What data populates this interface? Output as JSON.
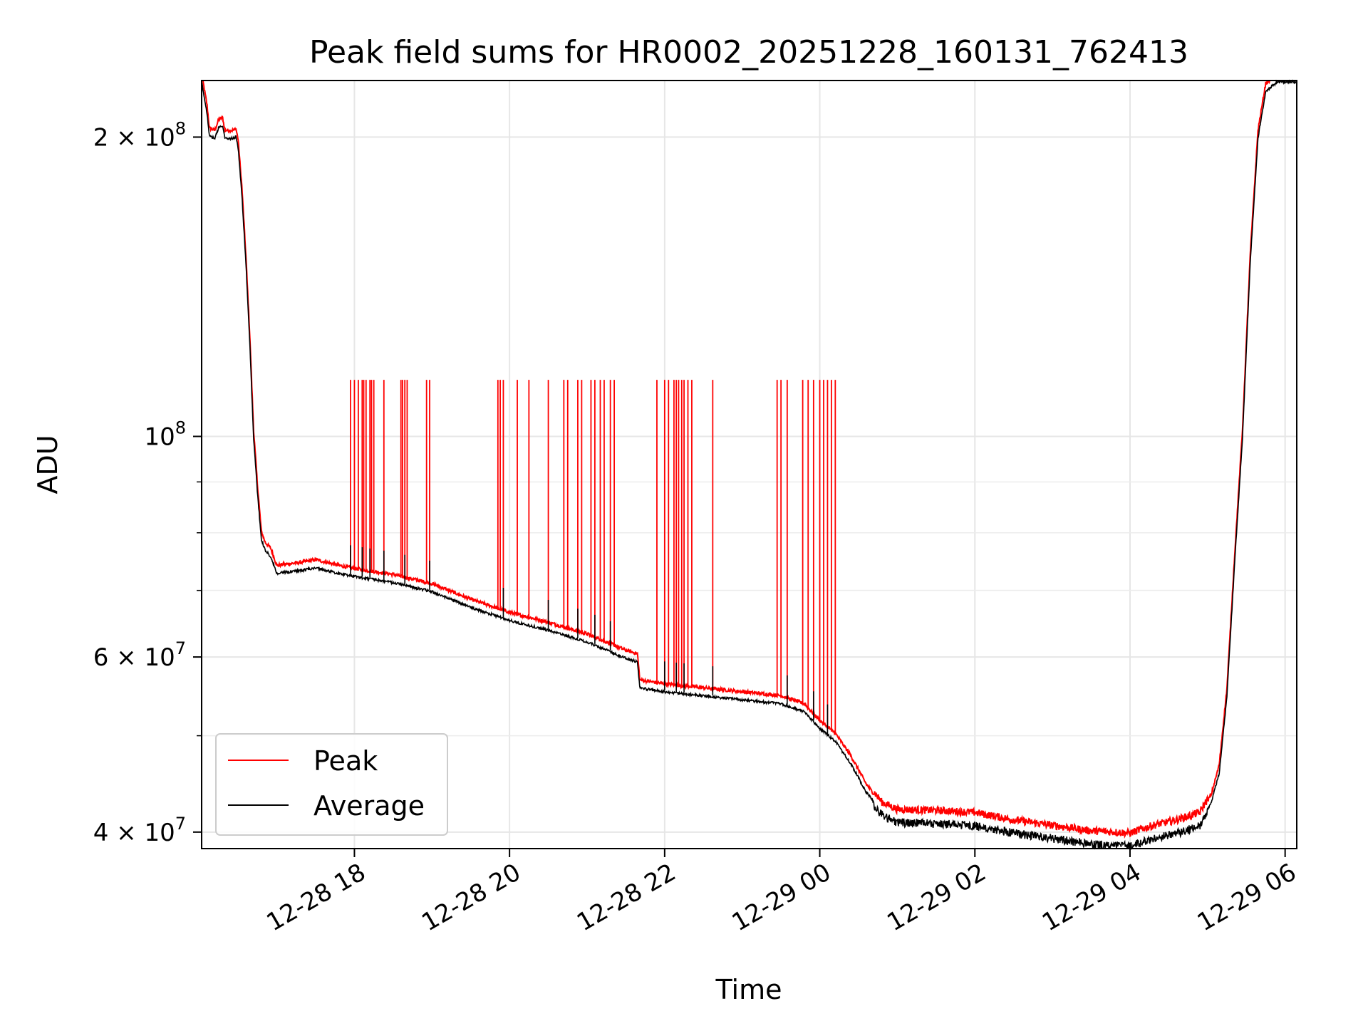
{
  "chart_data": {
    "type": "line",
    "title": "Peak field sums for HR0002_20251228_160131_762413",
    "xlabel": "Time",
    "ylabel": "ADU",
    "yscale": "log",
    "grid": true,
    "legend_position": "lower-left",
    "x_unit": "hours since 12-28 16:00",
    "xlim": [
      0.03,
      14.15
    ],
    "ylim": [
      38500000,
      228000000
    ],
    "x_ticks": [
      {
        "value": 2,
        "label": "12-28 18"
      },
      {
        "value": 4,
        "label": "12-28 20"
      },
      {
        "value": 6,
        "label": "12-28 22"
      },
      {
        "value": 8,
        "label": "12-29 00"
      },
      {
        "value": 10,
        "label": "12-29 02"
      },
      {
        "value": 12,
        "label": "12-29 04"
      },
      {
        "value": 14,
        "label": "12-29 06"
      }
    ],
    "y_ticks": [
      {
        "value": 40000000,
        "mantissa": "4",
        "exp": "7"
      },
      {
        "value": 60000000,
        "mantissa": "6",
        "exp": "7"
      },
      {
        "value": 100000000,
        "mantissa": "",
        "exp": "8"
      },
      {
        "value": 200000000,
        "mantissa": "2",
        "exp": "8"
      }
    ],
    "y_minor_ticks": [
      50000000,
      70000000,
      80000000,
      90000000
    ],
    "series": [
      {
        "name": "Peak",
        "color": "#ff0000",
        "spike_level": 114000000,
        "spike_times": [
          1.95,
          2.0,
          2.05,
          2.1,
          2.12,
          2.15,
          2.2,
          2.22,
          2.25,
          2.38,
          2.6,
          2.62,
          2.65,
          2.68,
          2.93,
          2.97,
          3.85,
          3.88,
          3.92,
          4.1,
          4.25,
          4.5,
          4.7,
          4.75,
          4.88,
          4.93,
          5.05,
          5.1,
          5.17,
          5.22,
          5.3,
          5.35,
          5.9,
          6.0,
          6.05,
          6.12,
          6.15,
          6.18,
          6.22,
          6.25,
          6.3,
          6.35,
          6.62,
          7.45,
          7.5,
          7.58,
          7.78,
          7.85,
          7.92,
          8.0,
          8.05,
          8.1,
          8.15,
          8.2
        ]
      },
      {
        "name": "Average",
        "color": "#000000",
        "points": [
          [
            0.03,
            228000000
          ],
          [
            0.1,
            212000000
          ],
          [
            0.13,
            201000000
          ],
          [
            0.2,
            200000000
          ],
          [
            0.25,
            205000000
          ],
          [
            0.3,
            206000000
          ],
          [
            0.33,
            200000000
          ],
          [
            0.45,
            200000000
          ],
          [
            0.47,
            201000000
          ],
          [
            0.5,
            196000000
          ],
          [
            0.55,
            175000000
          ],
          [
            0.6,
            150000000
          ],
          [
            0.65,
            125000000
          ],
          [
            0.7,
            100000000
          ],
          [
            0.75,
            88000000
          ],
          [
            0.8,
            79000000
          ],
          [
            0.85,
            77000000
          ],
          [
            0.92,
            76000000
          ],
          [
            1.0,
            73000000
          ],
          [
            1.1,
            73200000
          ],
          [
            1.3,
            73500000
          ],
          [
            1.5,
            74000000
          ],
          [
            1.8,
            73000000
          ],
          [
            2.0,
            72500000
          ],
          [
            2.5,
            71500000
          ],
          [
            3.0,
            70000000
          ],
          [
            3.5,
            67500000
          ],
          [
            4.0,
            65500000
          ],
          [
            4.5,
            64000000
          ],
          [
            5.0,
            62300000
          ],
          [
            5.5,
            60000000
          ],
          [
            5.65,
            59500000
          ],
          [
            5.68,
            56000000
          ],
          [
            6.0,
            55500000
          ],
          [
            6.5,
            55000000
          ],
          [
            7.0,
            54500000
          ],
          [
            7.5,
            54000000
          ],
          [
            7.8,
            53000000
          ],
          [
            8.0,
            51000000
          ],
          [
            8.2,
            49500000
          ],
          [
            8.4,
            47000000
          ],
          [
            8.6,
            44000000
          ],
          [
            8.8,
            42000000
          ],
          [
            9.0,
            41300000
          ],
          [
            9.5,
            41200000
          ],
          [
            10.0,
            41000000
          ],
          [
            10.5,
            40300000
          ],
          [
            11.0,
            39800000
          ],
          [
            11.5,
            39300000
          ],
          [
            12.0,
            39100000
          ],
          [
            12.3,
            39800000
          ],
          [
            12.6,
            40300000
          ],
          [
            12.9,
            41000000
          ],
          [
            13.05,
            43000000
          ],
          [
            13.15,
            46000000
          ],
          [
            13.25,
            55000000
          ],
          [
            13.35,
            75000000
          ],
          [
            13.45,
            100000000
          ],
          [
            13.55,
            150000000
          ],
          [
            13.65,
            200000000
          ],
          [
            13.75,
            223000000
          ],
          [
            13.9,
            228000000
          ],
          [
            14.15,
            228000000
          ]
        ]
      }
    ],
    "legend": [
      {
        "label": "Peak",
        "color": "#ff0000"
      },
      {
        "label": "Average",
        "color": "#000000"
      }
    ]
  }
}
